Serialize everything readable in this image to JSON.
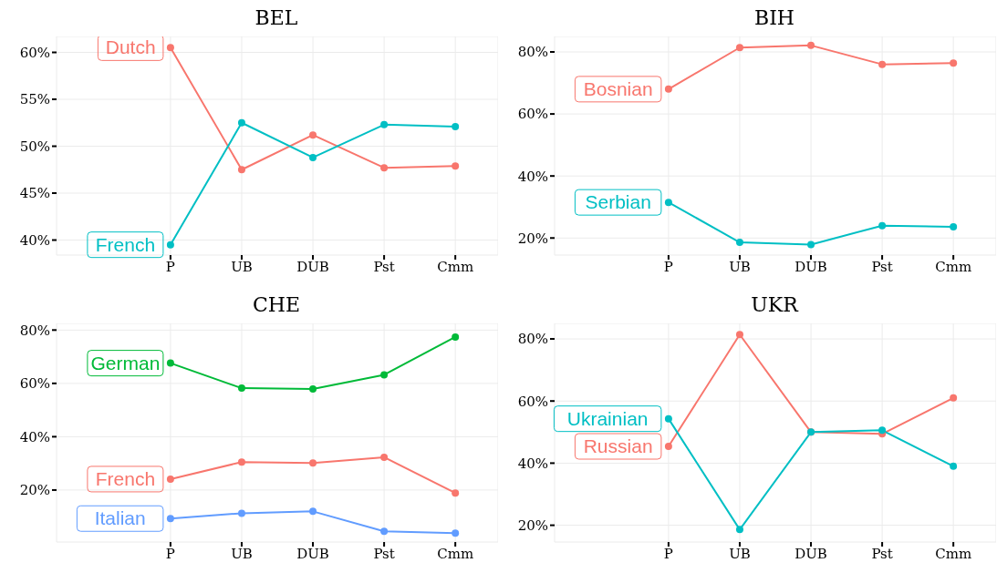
{
  "chart_data": [
    {
      "type": "line",
      "title": "BEL",
      "categories": [
        "P",
        "UB",
        "DUB",
        "Pst",
        "Cmm"
      ],
      "ylim": [
        38.4,
        61.7
      ],
      "yticks": [
        {
          "value": 40,
          "label": "40%"
        },
        {
          "value": 45,
          "label": "45%"
        },
        {
          "value": 50,
          "label": "50%"
        },
        {
          "value": 55,
          "label": "55%"
        },
        {
          "value": 60,
          "label": "60%"
        }
      ],
      "grid": true,
      "marker": "circle",
      "line_style": "solid",
      "series": [
        {
          "name": "Dutch",
          "color": "#f8766d",
          "values": [
            60.5,
            47.5,
            51.2,
            47.7,
            47.9
          ]
        },
        {
          "name": "French",
          "color": "#00bfc4",
          "values": [
            39.5,
            52.5,
            48.8,
            52.3,
            52.1
          ]
        }
      ]
    },
    {
      "type": "line",
      "title": "BIH",
      "categories": [
        "P",
        "UB",
        "DUB",
        "Pst",
        "Cmm"
      ],
      "ylim": [
        14.5,
        85
      ],
      "yticks": [
        {
          "value": 20,
          "label": "20%"
        },
        {
          "value": 40,
          "label": "40%"
        },
        {
          "value": 60,
          "label": "60%"
        },
        {
          "value": 80,
          "label": "80%"
        }
      ],
      "grid": true,
      "marker": "circle",
      "line_style": "solid",
      "series": [
        {
          "name": "Bosnian",
          "color": "#f8766d",
          "values": [
            68,
            81.4,
            82.1,
            76.0,
            76.4
          ]
        },
        {
          "name": "Serbian",
          "color": "#00bfc4",
          "values": [
            31.5,
            18.6,
            17.9,
            24.0,
            23.6
          ]
        }
      ]
    },
    {
      "type": "line",
      "title": "CHE",
      "categories": [
        "P",
        "UB",
        "DUB",
        "Pst",
        "Cmm"
      ],
      "ylim": [
        0.5,
        82.5
      ],
      "yticks": [
        {
          "value": 20,
          "label": "20%"
        },
        {
          "value": 40,
          "label": "40%"
        },
        {
          "value": 60,
          "label": "60%"
        },
        {
          "value": 80,
          "label": "80%"
        }
      ],
      "grid": true,
      "marker": "circle",
      "line_style": "solid",
      "series": [
        {
          "name": "German",
          "color": "#00ba38",
          "values": [
            67.6,
            58.2,
            57.9,
            63.2,
            77.4
          ]
        },
        {
          "name": "French",
          "color": "#f8766d",
          "values": [
            24.1,
            30.5,
            30.1,
            32.3,
            18.9
          ]
        },
        {
          "name": "Italian",
          "color": "#619cff",
          "values": [
            9.3,
            11.3,
            12.0,
            4.5,
            3.8
          ]
        }
      ]
    },
    {
      "type": "line",
      "title": "UKR",
      "categories": [
        "P",
        "UB",
        "DUB",
        "Pst",
        "Cmm"
      ],
      "ylim": [
        14.6,
        85
      ],
      "yticks": [
        {
          "value": 20,
          "label": "20%"
        },
        {
          "value": 40,
          "label": "40%"
        },
        {
          "value": 60,
          "label": "60%"
        },
        {
          "value": 80,
          "label": "80%"
        }
      ],
      "grid": true,
      "marker": "circle",
      "line_style": "solid",
      "series": [
        {
          "name": "Russian",
          "color": "#f8766d",
          "values": [
            45.4,
            81.4,
            50.0,
            49.4,
            61.0
          ]
        },
        {
          "name": "Ukrainian",
          "color": "#00bfc4",
          "values": [
            54.3,
            18.6,
            50.0,
            50.6,
            39.0
          ]
        }
      ]
    }
  ]
}
